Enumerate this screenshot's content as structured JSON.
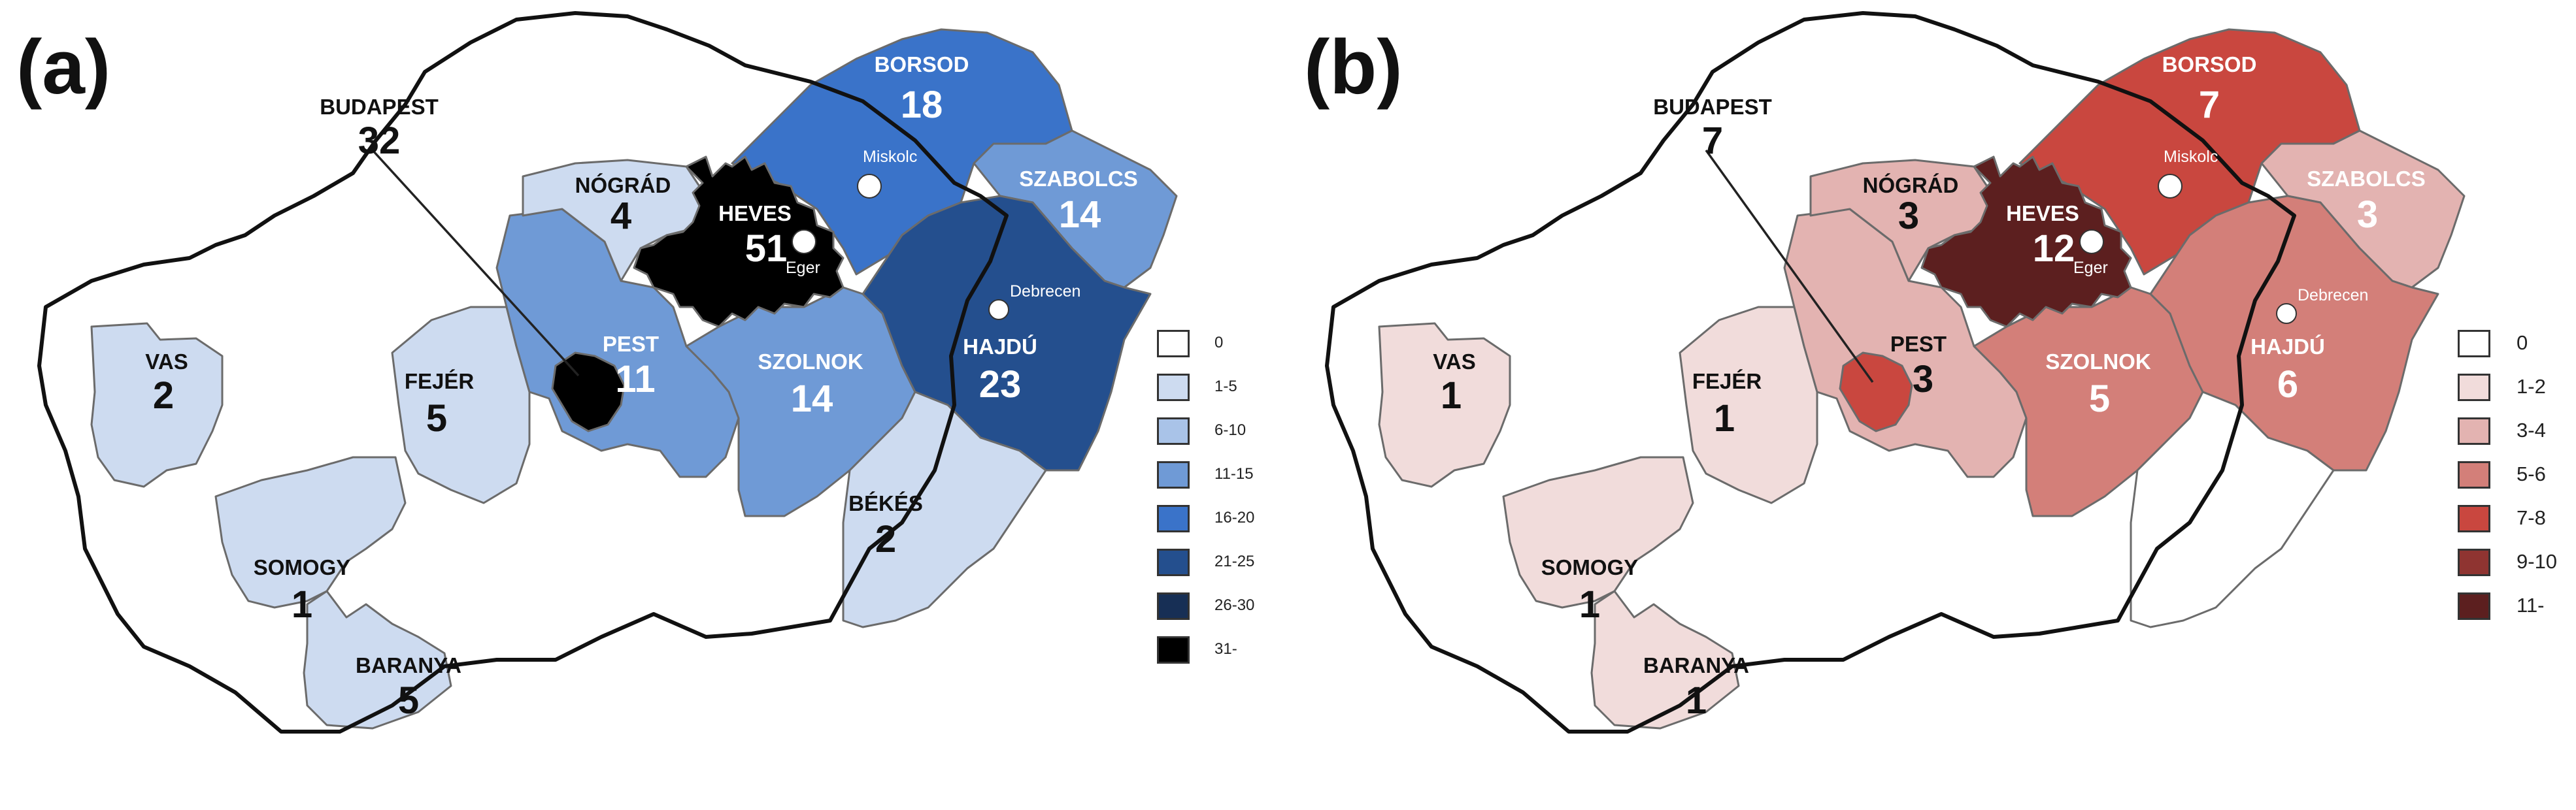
{
  "panels": {
    "a": {
      "label": "(a)",
      "counties": {
        "vas": {
          "name": "VAS",
          "value": "2",
          "fill": "#cddbf0",
          "light": false
        },
        "somogy": {
          "name": "SOMOGY",
          "value": "1",
          "fill": "#cddbf0",
          "light": false
        },
        "baranya": {
          "name": "BARANYA",
          "value": "5",
          "fill": "#cddbf0",
          "light": false
        },
        "fejer": {
          "name": "FEJÉR",
          "value": "5",
          "fill": "#cddbf0",
          "light": false
        },
        "pest": {
          "name": "PEST",
          "value": "11",
          "fill": "#6f9ad6",
          "light": true
        },
        "nograd": {
          "name": "NÓGRÁD",
          "value": "4",
          "fill": "#cddbf0",
          "light": false
        },
        "heves": {
          "name": "HEVES",
          "value": "51",
          "fill": "#000000",
          "light": true
        },
        "borsod": {
          "name": "BORSOD",
          "value": "18",
          "fill": "#3a73c9",
          "light": true
        },
        "szabolcs": {
          "name": "SZABOLCS",
          "value": "14",
          "fill": "#6f9ad6",
          "light": true
        },
        "szolnok": {
          "name": "SZOLNOK",
          "value": "14",
          "fill": "#6f9ad6",
          "light": true
        },
        "hajdu": {
          "name": "HAJDÚ",
          "value": "23",
          "fill": "#244f8e",
          "light": true
        },
        "bekes": {
          "name": "BÉKÉS",
          "value": "2",
          "fill": "#cddbf0",
          "light": false
        },
        "budapest": {
          "name": "BUDAPEST",
          "value": "32",
          "fill": "#000000",
          "light": false
        }
      },
      "cities": {
        "miskolc": "Miskolc",
        "eger": "Eger",
        "debrecen": "Debrecen"
      },
      "legend": [
        {
          "label": "0",
          "color": "#ffffff"
        },
        {
          "label": "1-5",
          "color": "#cddbf0"
        },
        {
          "label": "6-10",
          "color": "#a9c3e8"
        },
        {
          "label": "11-15",
          "color": "#6f9ad6"
        },
        {
          "label": "16-20",
          "color": "#3a73c9"
        },
        {
          "label": "21-25",
          "color": "#244f8e"
        },
        {
          "label": "26-30",
          "color": "#172f55"
        },
        {
          "label": "31-",
          "color": "#000000"
        }
      ]
    },
    "b": {
      "label": "(b)",
      "counties": {
        "vas": {
          "name": "VAS",
          "value": "1",
          "fill": "#f1dcdb",
          "light": false
        },
        "somogy": {
          "name": "SOMOGY",
          "value": "1",
          "fill": "#f1dcdb",
          "light": false
        },
        "baranya": {
          "name": "BARANYA",
          "value": "1",
          "fill": "#f1dcdb",
          "light": false
        },
        "fejer": {
          "name": "FEJÉR",
          "value": "1",
          "fill": "#f1dcdb",
          "light": false
        },
        "pest": {
          "name": "PEST",
          "value": "3",
          "fill": "#e3b3b1",
          "light": false
        },
        "nograd": {
          "name": "NÓGRÁD",
          "value": "3",
          "fill": "#e3b3b1",
          "light": false
        },
        "heves": {
          "name": "HEVES",
          "value": "12",
          "fill": "#5c1f1f",
          "light": true
        },
        "borsod": {
          "name": "BORSOD",
          "value": "7",
          "fill": "#c9473f",
          "light": true
        },
        "szabolcs": {
          "name": "SZABOLCS",
          "value": "3",
          "fill": "#e3b3b1",
          "light": true
        },
        "szolnok": {
          "name": "SZOLNOK",
          "value": "5",
          "fill": "#d37f79",
          "light": true
        },
        "hajdu": {
          "name": "HAJDÚ",
          "value": "6",
          "fill": "#d37f79",
          "light": true
        },
        "bekes": {
          "name": "",
          "value": "",
          "fill": "#ffffff",
          "light": false
        },
        "budapest": {
          "name": "BUDAPEST",
          "value": "7",
          "fill": "#c9473f",
          "light": false
        }
      },
      "cities": {
        "miskolc": "Miskolc",
        "eger": "Eger",
        "debrecen": "Debrecen"
      },
      "legend": [
        {
          "label": "0",
          "color": "#ffffff"
        },
        {
          "label": "1-2",
          "color": "#f1dcdb"
        },
        {
          "label": "3-4",
          "color": "#e3b3b1"
        },
        {
          "label": "5-6",
          "color": "#d37f79"
        },
        {
          "label": "7-8",
          "color": "#c9473f"
        },
        {
          "label": "9-10",
          "color": "#8f3431"
        },
        {
          "label": "11-",
          "color": "#5c1f1f"
        }
      ]
    }
  }
}
